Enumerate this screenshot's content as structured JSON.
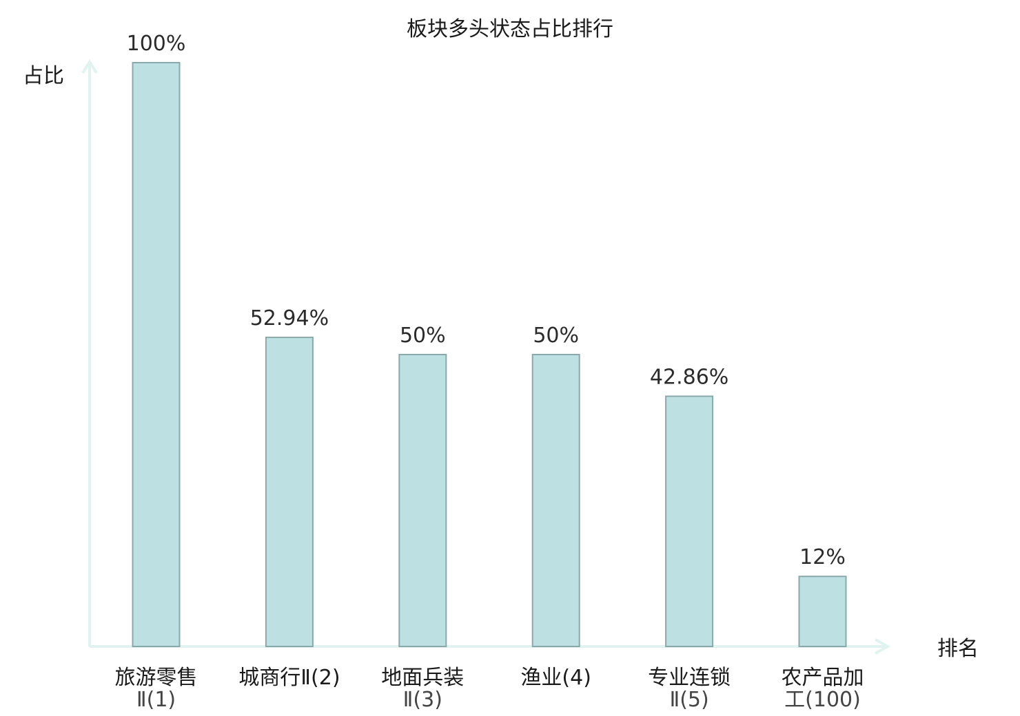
{
  "chart_data": {
    "type": "bar",
    "title": "板块多头状态占比排行",
    "ylabel": "占比",
    "xlabel": "排名",
    "ylim": [
      0,
      100
    ],
    "grid": false,
    "value_suffix": "%",
    "categories": [
      {
        "name": "旅游零售Ⅱ",
        "rank": "(1)",
        "highlight": false
      },
      {
        "name": "城商行Ⅱ",
        "rank": "(2)",
        "highlight": false
      },
      {
        "name": "地面兵装Ⅱ",
        "rank": "(3)",
        "highlight": false
      },
      {
        "name": "渔业",
        "rank": "(4)",
        "highlight": false
      },
      {
        "name": "专业连锁Ⅱ",
        "rank": "(5)",
        "highlight": false
      },
      {
        "name": "农产品加工",
        "rank": "(100)",
        "highlight": true
      }
    ],
    "values": [
      100,
      52.94,
      50,
      50,
      42.86,
      12
    ],
    "value_labels": [
      "100%",
      "52.94%",
      "50%",
      "50%",
      "42.86%",
      "12%"
    ]
  },
  "colors": {
    "bar_fill": "#bde1e3",
    "bar_stroke": "#8aa8aa",
    "axis": "#e0f3f1",
    "highlight": "#dd0000",
    "text": "#1a1a1a"
  }
}
